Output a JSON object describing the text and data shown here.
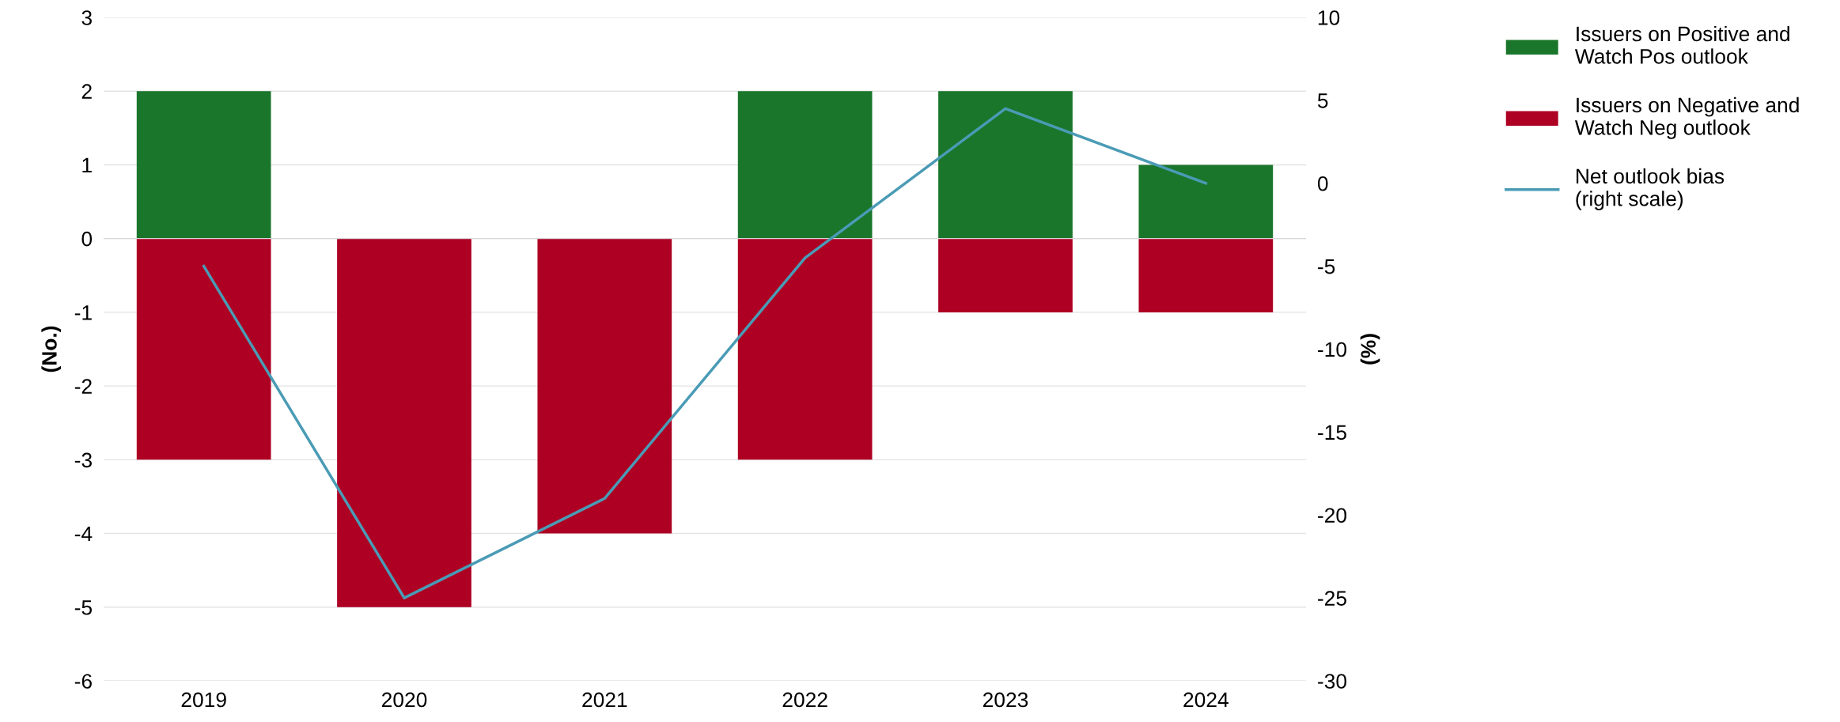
{
  "chart_data": {
    "type": "bar",
    "stacked": true,
    "categories": [
      "2019",
      "2020",
      "2021",
      "2022",
      "2023",
      "2024"
    ],
    "series": [
      {
        "name": "Issuers on Positive and\nWatch Pos outlook",
        "color": "#1a762b",
        "values": [
          2,
          0,
          0,
          2,
          2,
          1
        ]
      },
      {
        "name": "Issuers on Negative and\nWatch Neg outlook",
        "color": "#ae0023",
        "values": [
          -3,
          -5,
          -4,
          -3,
          -1,
          -1
        ]
      },
      {
        "name": "Net outlook bias\n(right scale)",
        "type": "line",
        "axis": "y2",
        "color": "#4a9bb5",
        "values": [
          -5,
          -25,
          -19,
          -4.5,
          4.5,
          0
        ]
      }
    ],
    "ylabel": "(No.)",
    "y2label": "(%)",
    "ylim": [
      -6,
      3
    ],
    "yticks": [
      -6,
      -5,
      -4,
      -3,
      -2,
      -1,
      0,
      1,
      2,
      3
    ],
    "y2lim": [
      -30,
      10
    ],
    "y2ticks": [
      -30,
      -25,
      -20,
      -15,
      -10,
      -5,
      0,
      5,
      10
    ],
    "grid": "y",
    "legend": "top right",
    "marker": "none",
    "line_style": "solid"
  }
}
